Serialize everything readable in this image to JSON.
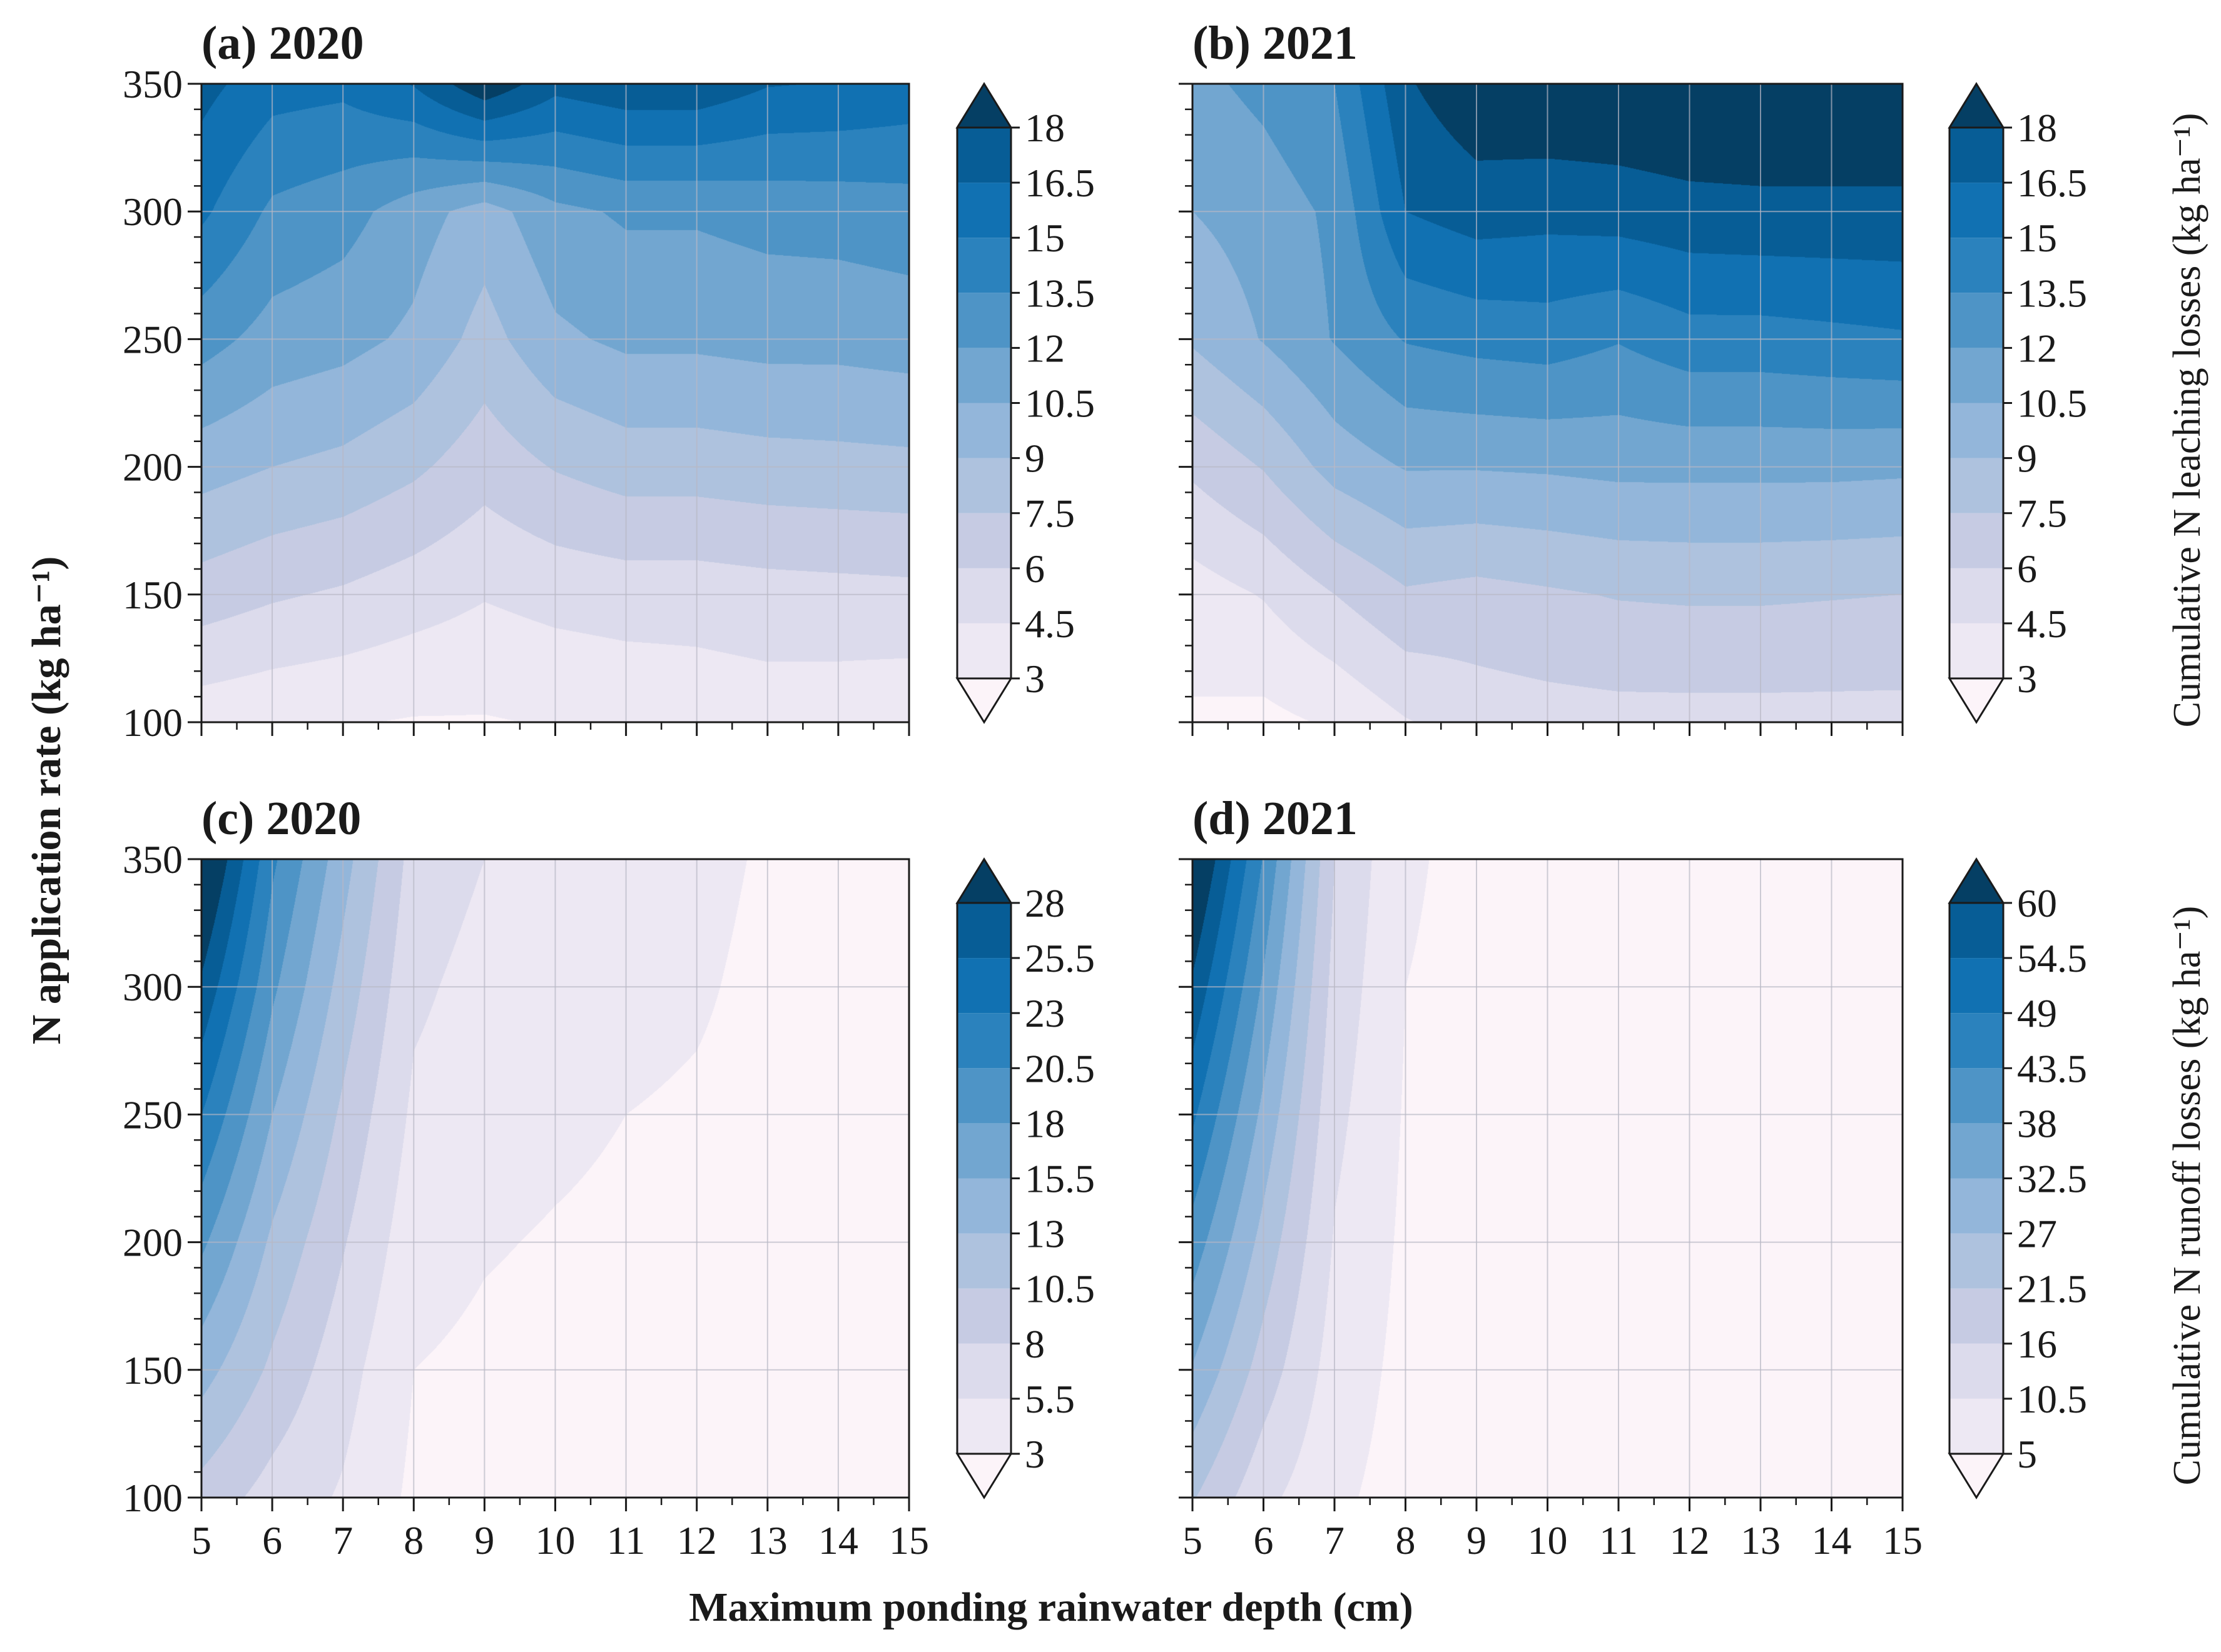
{
  "figure": {
    "x_label": "Maximum ponding rainwater depth (cm)",
    "y_label": "N application rate (kg ha⁻¹)",
    "cb_label_top": "Cumulative N leaching losses (kg ha⁻¹)",
    "cb_label_bottom": "Cumulative N runoff losses (kg ha⁻¹)"
  },
  "palette": [
    "#fcf4f9",
    "#ede8f3",
    "#dcdbec",
    "#c6cbe3",
    "#aec2de",
    "#93b6da",
    "#72a6d0",
    "#4e94c6",
    "#2b82bd",
    "#1171b2",
    "#075d96",
    "#053f64"
  ],
  "chart_data": [
    {
      "type": "contour",
      "panel": "(a)",
      "year": "2020",
      "x_values": [
        5,
        6,
        7,
        8,
        9,
        10,
        11,
        12,
        13,
        14,
        15
      ],
      "y_values": [
        100,
        150,
        200,
        250,
        300,
        350
      ],
      "x_ticks": [
        "5",
        "6",
        "7",
        "8",
        "9",
        "10",
        "11",
        "12",
        "13",
        "14",
        "15"
      ],
      "y_ticks": [
        "100",
        "150",
        "200",
        "250",
        "300",
        "350"
      ],
      "xlim": [
        5,
        15
      ],
      "ylim": [
        100,
        350
      ],
      "levels": [
        3,
        4.5,
        6,
        7.5,
        9,
        10.5,
        12,
        13.5,
        15,
        16.5,
        18
      ],
      "level_labels": [
        "3",
        "4.5",
        "6",
        "7.5",
        "9",
        "10.5",
        "12",
        "13.5",
        "15",
        "16.5",
        "18"
      ],
      "z": [
        [
          3.6,
          3.3,
          3.1,
          2.9,
          2.9,
          3.1,
          3.3,
          3.5,
          3.7,
          3.6,
          3.4
        ],
        [
          6.8,
          6.2,
          5.8,
          5.2,
          4.6,
          5.0,
          5.2,
          5.2,
          5.4,
          5.5,
          5.6
        ],
        [
          9.6,
          9.0,
          8.6,
          7.8,
          6.6,
          7.6,
          8.2,
          8.2,
          8.4,
          8.5,
          8.6
        ],
        [
          12.6,
          11.4,
          11.0,
          10.2,
          8.4,
          10.2,
          10.8,
          10.8,
          11.0,
          11.0,
          11.2
        ],
        [
          15.3,
          13.2,
          12.6,
          11.2,
          9.8,
          11.6,
          12.2,
          12.2,
          12.5,
          12.6,
          12.8
        ],
        [
          17.0,
          15.6,
          15.4,
          16.6,
          19.2,
          17.0,
          17.6,
          17.6,
          16.6,
          16.4,
          16.0
        ]
      ]
    },
    {
      "type": "contour",
      "panel": "(b)",
      "year": "2021",
      "x_values": [
        5,
        6,
        7,
        8,
        9,
        10,
        11,
        12,
        13,
        14,
        15
      ],
      "y_values": [
        100,
        150,
        200,
        250,
        300,
        350
      ],
      "x_ticks": [
        "5",
        "6",
        "7",
        "8",
        "9",
        "10",
        "11",
        "12",
        "13",
        "14",
        "15"
      ],
      "y_ticks": [
        "100",
        "150",
        "200",
        "250",
        "300",
        "350"
      ],
      "xlim": [
        5,
        15
      ],
      "ylim": [
        100,
        350
      ],
      "levels": [
        3,
        4.5,
        6,
        7.5,
        9,
        10.5,
        12,
        13.5,
        15,
        16.5,
        18
      ],
      "level_labels": [
        "3",
        "4.5",
        "6",
        "7.5",
        "9",
        "10.5",
        "12",
        "13.5",
        "15",
        "16.5",
        "18"
      ],
      "z": [
        [
          2.8,
          2.6,
          3.2,
          4.4,
          5.2,
          5.4,
          5.5,
          5.5,
          5.5,
          5.5,
          5.5
        ],
        [
          3.8,
          4.6,
          6.0,
          7.3,
          7.0,
          7.3,
          7.6,
          7.7,
          7.7,
          7.6,
          7.5
        ],
        [
          6.3,
          7.6,
          9.6,
          10.6,
          10.6,
          10.7,
          10.9,
          10.9,
          10.9,
          10.9,
          10.8
        ],
        [
          9.2,
          10.6,
          12.1,
          13.6,
          14.0,
          14.2,
          13.6,
          14.4,
          14.4,
          14.6,
          14.8
        ],
        [
          10.5,
          11.2,
          12.3,
          16.5,
          17.2,
          17.0,
          17.2,
          17.5,
          17.6,
          17.6,
          17.6
        ],
        [
          11.6,
          12.4,
          13.5,
          17.8,
          19.2,
          19.4,
          19.4,
          19.6,
          19.6,
          19.6,
          19.6
        ]
      ]
    },
    {
      "type": "contour",
      "panel": "(c)",
      "year": "2020",
      "x_values": [
        5,
        6,
        7,
        8,
        9,
        10,
        11,
        12,
        13,
        14,
        15
      ],
      "y_values": [
        100,
        150,
        200,
        250,
        300,
        350
      ],
      "x_ticks": [
        "5",
        "6",
        "7",
        "8",
        "9",
        "10",
        "11",
        "12",
        "13",
        "14",
        "15"
      ],
      "y_ticks": [
        "100",
        "150",
        "200",
        "250",
        "300",
        "350"
      ],
      "xlim": [
        5,
        15
      ],
      "ylim": [
        100,
        350
      ],
      "levels": [
        3,
        5.5,
        8,
        10.5,
        13,
        15.5,
        18,
        20.5,
        23,
        25.5,
        28
      ],
      "level_labels": [
        "3",
        "5.5",
        "8",
        "10.5",
        "13",
        "15.5",
        "18",
        "20.5",
        "23",
        "25.5",
        "28"
      ],
      "z": [
        [
          9.5,
          7.0,
          5.2,
          2.5,
          2.0,
          1.5,
          1.5,
          1.5,
          1.5,
          1.5,
          1.5
        ],
        [
          14.0,
          10.0,
          6.5,
          3.0,
          2.5,
          2.2,
          2.0,
          1.5,
          1.5,
          1.5,
          1.5
        ],
        [
          18.5,
          12.5,
          8.2,
          4.0,
          3.2,
          2.8,
          2.5,
          2.2,
          1.8,
          1.5,
          1.5
        ],
        [
          23.0,
          15.5,
          10.0,
          5.0,
          4.0,
          3.5,
          3.0,
          2.8,
          2.5,
          2.2,
          2.0
        ],
        [
          27.5,
          18.5,
          12.0,
          6.0,
          4.6,
          4.0,
          3.5,
          3.2,
          2.6,
          2.2,
          2.0
        ],
        [
          32.0,
          21.0,
          14.0,
          7.0,
          5.5,
          4.8,
          4.2,
          3.5,
          2.8,
          2.3,
          2.0
        ]
      ]
    },
    {
      "type": "contour",
      "panel": "(d)",
      "year": "2021",
      "x_values": [
        5,
        6,
        7,
        8,
        9,
        10,
        11,
        12,
        13,
        14,
        15
      ],
      "y_values": [
        100,
        150,
        200,
        250,
        300,
        350
      ],
      "x_ticks": [
        "5",
        "6",
        "7",
        "8",
        "9",
        "10",
        "11",
        "12",
        "13",
        "14",
        "15"
      ],
      "y_ticks": [
        "100",
        "150",
        "200",
        "250",
        "300",
        "350"
      ],
      "xlim": [
        5,
        15
      ],
      "ylim": [
        100,
        350
      ],
      "levels": [
        5,
        10.5,
        16,
        21.5,
        27,
        32.5,
        38,
        43.5,
        49,
        54.5,
        60
      ],
      "level_labels": [
        "5",
        "10.5",
        "16",
        "21.5",
        "27",
        "32.5",
        "38",
        "43.5",
        "49",
        "54.5",
        "60"
      ],
      "z": [
        [
          22,
          12,
          6,
          3,
          2.5,
          2.5,
          2.5,
          2.5,
          2.5,
          2.5,
          2.5
        ],
        [
          32,
          19,
          8,
          3.5,
          3,
          2.5,
          2.5,
          2.5,
          2.5,
          2.5,
          2.5
        ],
        [
          41,
          25,
          10,
          4,
          3,
          3,
          3,
          3,
          3,
          3,
          3
        ],
        [
          50,
          31,
          12,
          4.5,
          3.5,
          3,
          3,
          3,
          3,
          3,
          3
        ],
        [
          59,
          37,
          14,
          5,
          4,
          3.5,
          3,
          3,
          3,
          3,
          3
        ],
        [
          68,
          43,
          16,
          5.5,
          4,
          3.5,
          3,
          3,
          3,
          3,
          3
        ]
      ]
    }
  ]
}
